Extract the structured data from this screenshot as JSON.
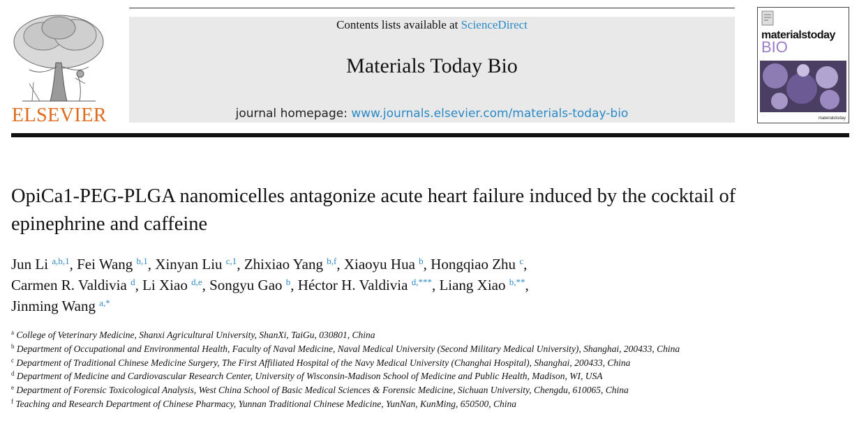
{
  "header": {
    "contents_prefix": "Contents lists available at ",
    "contents_link": "ScienceDirect",
    "journal_title": "Materials Today Bio",
    "homepage_prefix": "journal homepage: ",
    "homepage_link": "www.journals.elsevier.com/materials-today-bio"
  },
  "publisher_logo": {
    "wordmark": "ELSEVIER",
    "icon": "elsevier-tree-icon",
    "color": "#e06a1b"
  },
  "cover": {
    "brand": "materialstoday",
    "sub": "BIO",
    "footer": "materialstoday",
    "accent": "#9b7cc8"
  },
  "article": {
    "title": "OpiCa1-PEG-PLGA nanomicelles antagonize acute heart failure induced by the cocktail of epinephrine and caffeine"
  },
  "authors": [
    {
      "name": "Jun Li",
      "sup": "a,b,1",
      "sep": ", "
    },
    {
      "name": "Fei Wang",
      "sup": "b,1",
      "sep": ", "
    },
    {
      "name": "Xinyan Liu",
      "sup": "c,1",
      "sep": ", "
    },
    {
      "name": "Zhixiao Yang",
      "sup": "b,f",
      "sep": ", "
    },
    {
      "name": "Xiaoyu Hua",
      "sup": "b",
      "sep": ", "
    },
    {
      "name": "Hongqiao Zhu",
      "sup": "c",
      "sep": ", "
    },
    {
      "name": "Carmen R. Valdivia",
      "sup": "d",
      "sep": ", "
    },
    {
      "name": "Li Xiao",
      "sup": "d,e",
      "sep": ", "
    },
    {
      "name": "Songyu Gao",
      "sup": "b",
      "sep": ", "
    },
    {
      "name": "Héctor H. Valdivia",
      "sup": "d,***",
      "sep": ", "
    },
    {
      "name": "Liang Xiao",
      "sup": "b,**",
      "sep": ", "
    },
    {
      "name": "Jinming Wang",
      "sup": "a,*",
      "sep": ""
    }
  ],
  "affiliations": [
    {
      "key": "a",
      "text": "College of Veterinary Medicine, Shanxi Agricultural University, ShanXi, TaiGu, 030801, China"
    },
    {
      "key": "b",
      "text": "Department of Occupational and Environmental Health, Faculty of Naval Medicine, Naval Medical University (Second Military Medical University), Shanghai, 200433, China"
    },
    {
      "key": "c",
      "text": "Department of Traditional Chinese Medicine Surgery, The First Affiliated Hospital of the Navy Medical University (Changhai Hospital), Shanghai, 200433, China"
    },
    {
      "key": "d",
      "text": "Department of Medicine and Cardiovascular Research Center, University of Wisconsin-Madison School of Medicine and Public Health, Madison, WI, USA"
    },
    {
      "key": "e",
      "text": "Department of Forensic Toxicological Analysis, West China School of Basic Medical Sciences & Forensic Medicine, Sichuan University, Chengdu, 610065, China"
    },
    {
      "key": "f",
      "text": "Teaching and Research Department of Chinese Pharmacy, Yunnan Traditional Chinese Medicine, YunNan, KunMing, 650500, China"
    }
  ]
}
